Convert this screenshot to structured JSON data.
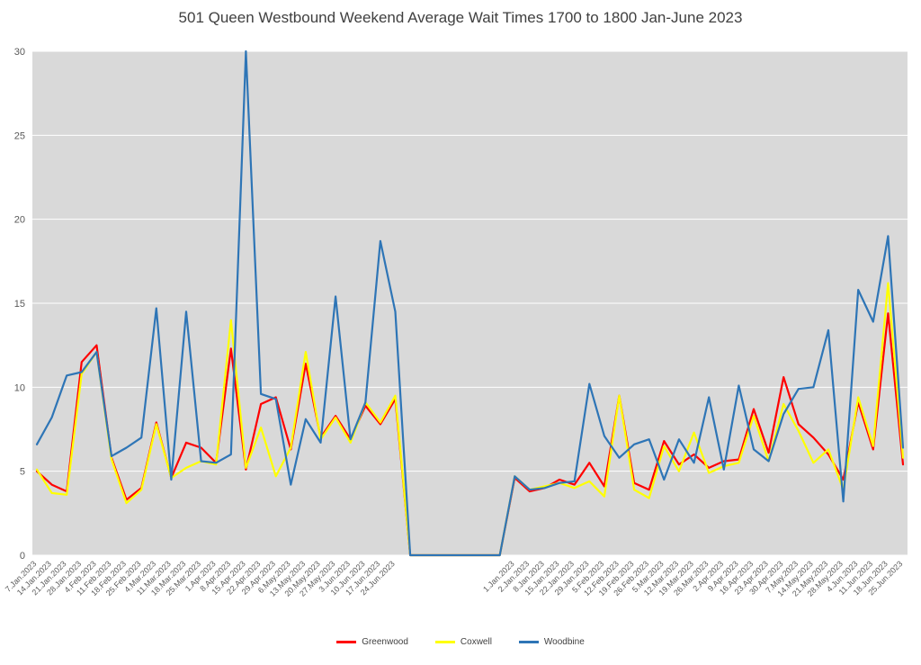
{
  "title": "501 Queen Westbound Weekend Average Wait Times 1700 to 1800 Jan-June 2023",
  "chart_data": {
    "type": "line",
    "title": "501 Queen Westbound Weekend Average Wait Times 1700 to 1800 Jan-June 2023",
    "xlabel": "",
    "ylabel": "",
    "ylim": [
      0,
      30
    ],
    "yticks": [
      0,
      5,
      10,
      15,
      20,
      25,
      30
    ],
    "grid": true,
    "plot_bg": "#d9d9d9",
    "gridline_color": "#ffffff",
    "legend_position": "bottom",
    "categories": [
      "7.Jan.2023",
      "14.Jan.2023",
      "21.Jan.2023",
      "28.Jan.2023",
      "4.Feb.2023",
      "11.Feb.2023",
      "18.Feb.2023",
      "25.Feb.2023",
      "4.Mar.2023",
      "11.Mar.2023",
      "18.Mar.2023",
      "25.Mar.2023",
      "1.Apr.2023",
      "8.Apr.2023",
      "15.Apr.2023",
      "22.Apr.2023",
      "29.Apr.2023",
      "6.May.2023",
      "13.May.2023",
      "20.May.2023",
      "27.May.2023",
      "3.Jun.2023",
      "10.Jun.2023",
      "17.Jun.2023",
      "24.Jun.2023",
      "",
      "",
      "",
      "",
      "",
      "",
      "",
      "1.Jan.2023",
      "2.Jan.2023",
      "8.Jan.2023",
      "15.Jan.2023",
      "22.Jan.2023",
      "29.Jan.2023",
      "5.Feb.2023",
      "12.Feb.2023",
      "19.Feb.2023",
      "26.Feb.2023",
      "5.Mar.2023",
      "12.Mar.2023",
      "19.Mar.2023",
      "26.Mar.2023",
      "2.Apr.2023",
      "9.Apr.2023",
      "16.Apr.2023",
      "23.Apr.2023",
      "30.Apr.2023",
      "7.May.2023",
      "14.May.2023",
      "21.May.2023",
      "28.May.2023",
      "4.Jun.2023",
      "11.Jun.2023",
      "18.Jun.2023",
      "25.Jun.2023"
    ],
    "series": [
      {
        "name": "Greenwood",
        "color": "#ff0000",
        "values": [
          5.0,
          4.2,
          3.8,
          11.5,
          12.5,
          5.8,
          3.3,
          4.0,
          7.9,
          4.6,
          6.7,
          6.4,
          5.5,
          12.3,
          5.1,
          9.0,
          9.4,
          6.3,
          11.4,
          7.0,
          8.3,
          6.9,
          8.9,
          7.8,
          9.3,
          0,
          0,
          0,
          0,
          0,
          0,
          0,
          4.6,
          3.8,
          4.0,
          4.5,
          4.2,
          5.5,
          4.1,
          9.5,
          4.3,
          3.9,
          6.8,
          5.4,
          6.0,
          5.2,
          5.6,
          5.7,
          8.7,
          6.1,
          10.6,
          7.8,
          7.0,
          6.0,
          4.5,
          9.1,
          6.3,
          14.4,
          5.4
        ]
      },
      {
        "name": "Coxwell",
        "color": "#ffff00",
        "values": [
          5.1,
          3.7,
          3.6,
          10.8,
          12.1,
          5.7,
          3.1,
          3.9,
          7.8,
          4.6,
          5.2,
          5.6,
          5.4,
          14.0,
          5.2,
          7.6,
          4.7,
          6.4,
          12.1,
          6.9,
          8.2,
          6.7,
          9.1,
          7.9,
          9.5,
          0,
          0,
          0,
          0,
          0,
          0,
          0,
          4.7,
          3.9,
          4.1,
          4.3,
          4.0,
          4.4,
          3.5,
          9.5,
          3.9,
          3.4,
          6.5,
          5.0,
          7.3,
          4.9,
          5.3,
          5.5,
          8.3,
          5.6,
          9.0,
          7.4,
          5.5,
          6.3,
          3.9,
          9.4,
          6.5,
          16.2,
          5.8
        ]
      },
      {
        "name": "Woodbine",
        "color": "#2e75b6",
        "values": [
          6.6,
          8.2,
          10.7,
          10.9,
          12.1,
          5.9,
          6.4,
          7.0,
          14.7,
          4.5,
          14.5,
          5.6,
          5.5,
          6.0,
          30.0,
          9.6,
          9.3,
          4.2,
          8.1,
          6.7,
          15.4,
          6.9,
          9.1,
          18.7,
          14.5,
          0,
          0,
          0,
          0,
          0,
          0,
          0,
          4.7,
          3.9,
          4.0,
          4.3,
          4.4,
          10.2,
          7.1,
          5.8,
          6.6,
          6.9,
          4.5,
          6.9,
          5.5,
          9.4,
          5.1,
          10.1,
          6.3,
          5.6,
          8.4,
          9.9,
          10.0,
          13.4,
          3.2,
          15.8,
          13.9,
          19.0,
          6.4
        ]
      }
    ]
  },
  "legend": {
    "items": [
      "Greenwood",
      "Coxwell",
      "Woodbine"
    ]
  }
}
